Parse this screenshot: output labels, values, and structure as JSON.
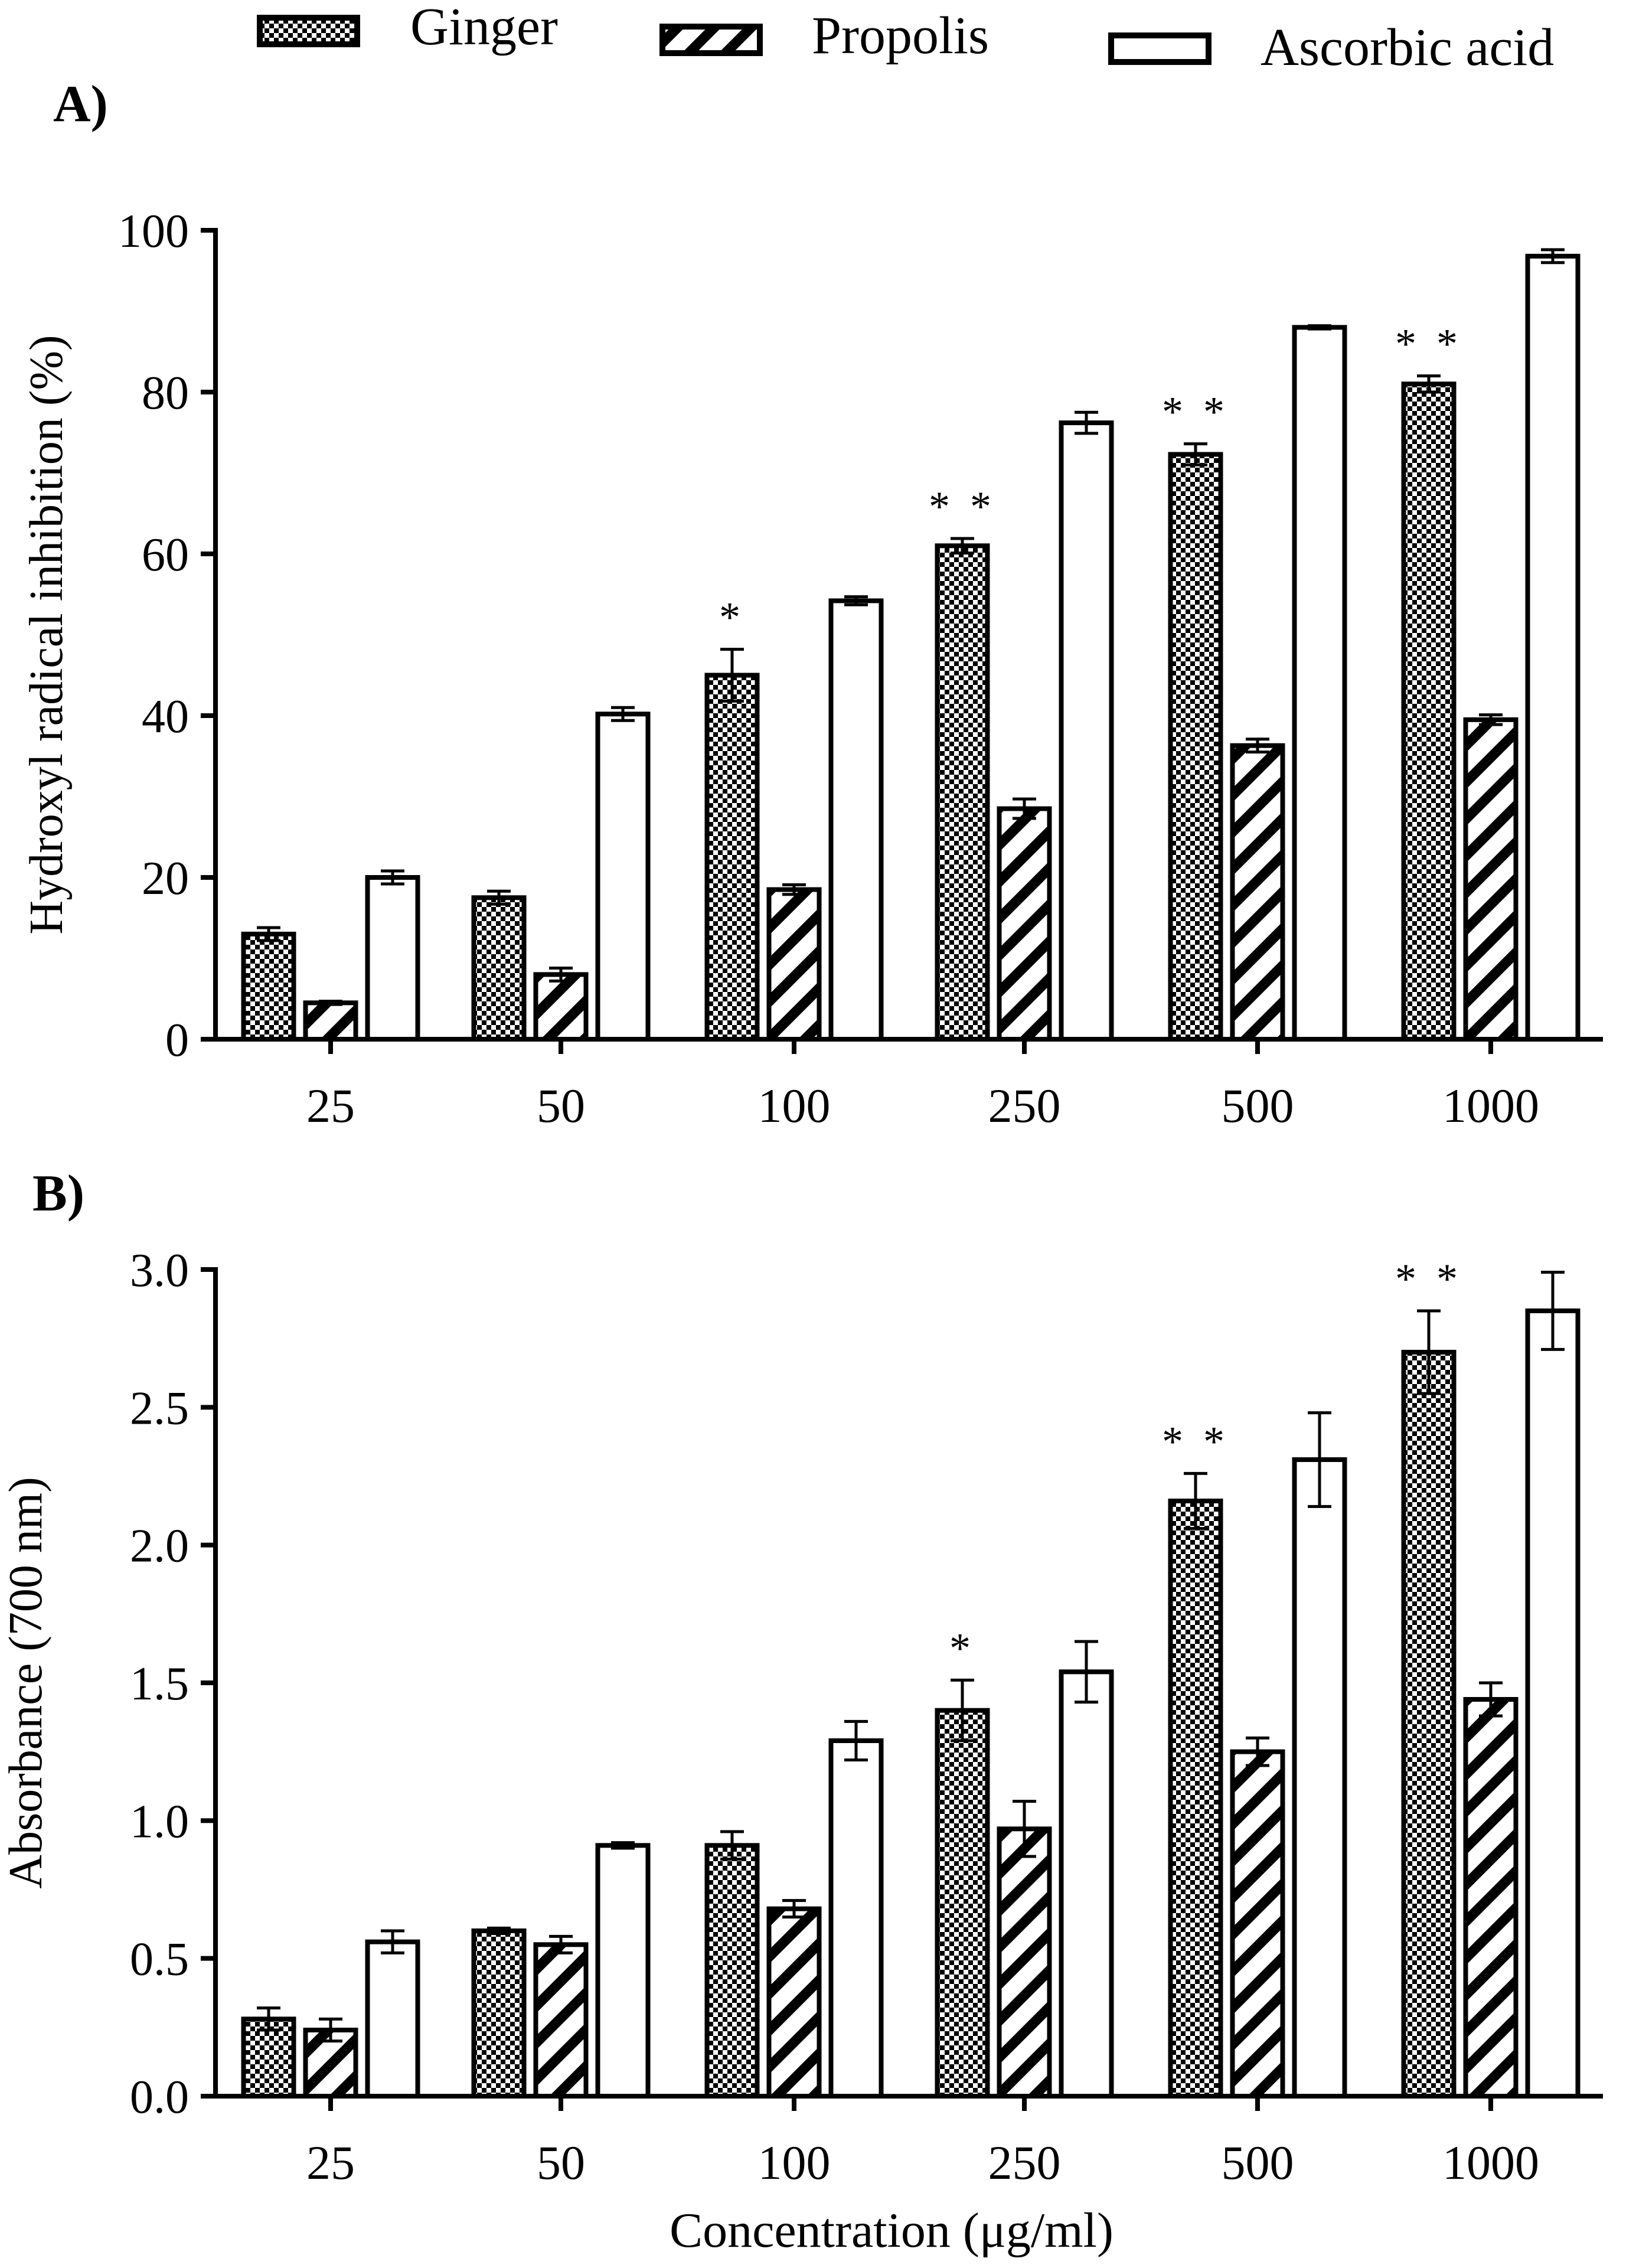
{
  "legend": {
    "items": [
      {
        "label": "Ginger",
        "pattern": "checker"
      },
      {
        "label": "Propolis",
        "pattern": "hatch"
      },
      {
        "label": "Ascorbic acid",
        "pattern": "none"
      }
    ]
  },
  "colors": {
    "ink": "#000000",
    "fill": "#ffffff"
  },
  "chart_data": [
    {
      "type": "bar",
      "panel_label": "A)",
      "title": "",
      "xlabel": "",
      "ylabel": "Hydroxyl radical inhibition (%)",
      "ylim": [
        0,
        100
      ],
      "yticks": [
        "0",
        "20",
        "40",
        "60",
        "80",
        "100"
      ],
      "categories": [
        "25",
        "50",
        "100",
        "250",
        "500",
        "1000"
      ],
      "series": [
        {
          "name": "Ginger",
          "values": [
            13,
            17.5,
            45,
            61,
            72.3,
            81
          ],
          "errors": [
            0.8,
            0.8,
            3.2,
            0.9,
            1.3,
            1.0
          ]
        },
        {
          "name": "Propolis",
          "values": [
            4.5,
            8,
            18.5,
            28.5,
            36.3,
            39.5
          ],
          "errors": [
            0.2,
            0.8,
            0.6,
            1.2,
            0.8,
            0.6
          ]
        },
        {
          "name": "Ascorbic acid",
          "values": [
            20,
            40.2,
            54.2,
            76.2,
            88,
            96.8
          ],
          "errors": [
            0.8,
            0.8,
            0.5,
            1.3,
            0.2,
            0.8
          ]
        }
      ],
      "annotations": [
        "",
        "",
        "*",
        "* *",
        "* *",
        "* *"
      ]
    },
    {
      "type": "bar",
      "panel_label": "B)",
      "title": "",
      "xlabel": "Concentration (μg/ml)",
      "ylabel": "Absorbance (700 nm)",
      "ylim": [
        0,
        3
      ],
      "yticks": [
        "0.0",
        "0.5",
        "1.0",
        "1.5",
        "2.0",
        "2.5",
        "3.0"
      ],
      "categories": [
        "25",
        "50",
        "100",
        "250",
        "500",
        "1000"
      ],
      "series": [
        {
          "name": "Ginger",
          "values": [
            0.28,
            0.6,
            0.91,
            1.4,
            2.16,
            2.7
          ],
          "errors": [
            0.04,
            0.01,
            0.05,
            0.11,
            0.1,
            0.15
          ]
        },
        {
          "name": "Propolis",
          "values": [
            0.24,
            0.55,
            0.68,
            0.97,
            1.25,
            1.44
          ],
          "errors": [
            0.04,
            0.03,
            0.03,
            0.1,
            0.05,
            0.06
          ]
        },
        {
          "name": "Ascorbic acid",
          "values": [
            0.56,
            0.91,
            1.29,
            1.54,
            2.31,
            2.85
          ],
          "errors": [
            0.04,
            0.01,
            0.07,
            0.11,
            0.17,
            0.14
          ]
        }
      ],
      "annotations": [
        "",
        "",
        "",
        "*",
        "* *",
        "* *"
      ]
    }
  ]
}
